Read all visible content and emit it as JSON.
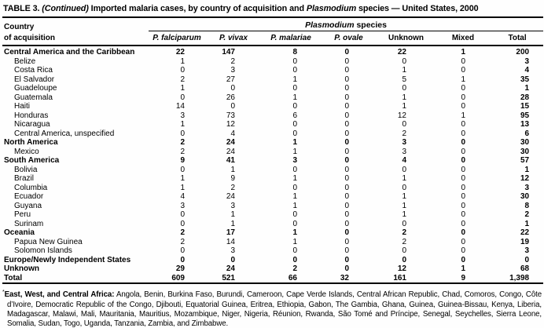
{
  "colors": {
    "background": "#fefefe",
    "text": "#000000",
    "rule": "#000000"
  },
  "title": {
    "label": "TABLE 3.",
    "continued": "(Continued)",
    "middle": "Imported malaria cases, by country of acquisition and",
    "species_word": "Plasmodium",
    "suffix": "species — United States, 2000"
  },
  "header": {
    "country_line1": "Country",
    "country_line2": "of acquisition",
    "group_italic": "Plasmodium",
    "group_rest": "species",
    "columns": [
      {
        "label": "P. falciparum",
        "italic": true
      },
      {
        "label": "P. vivax",
        "italic": true
      },
      {
        "label": "P. malariae",
        "italic": true
      },
      {
        "label": "P. ovale",
        "italic": true
      },
      {
        "label": "Unknown",
        "italic": false
      },
      {
        "label": "Mixed",
        "italic": false
      },
      {
        "label": "Total",
        "italic": false
      }
    ]
  },
  "rows": [
    {
      "label": "Central America and the Caribbean",
      "bold": true,
      "indent": false,
      "values": [
        "22",
        "147",
        "8",
        "0",
        "22",
        "1",
        "200"
      ]
    },
    {
      "label": "Belize",
      "bold": false,
      "indent": true,
      "values": [
        "1",
        "2",
        "0",
        "0",
        "0",
        "0",
        "3"
      ]
    },
    {
      "label": "Costa Rica",
      "bold": false,
      "indent": true,
      "values": [
        "0",
        "3",
        "0",
        "0",
        "1",
        "0",
        "4"
      ]
    },
    {
      "label": "El Salvador",
      "bold": false,
      "indent": true,
      "values": [
        "2",
        "27",
        "1",
        "0",
        "5",
        "1",
        "35"
      ]
    },
    {
      "label": "Guadeloupe",
      "bold": false,
      "indent": true,
      "values": [
        "1",
        "0",
        "0",
        "0",
        "0",
        "0",
        "1"
      ]
    },
    {
      "label": "Guatemala",
      "bold": false,
      "indent": true,
      "values": [
        "0",
        "26",
        "1",
        "0",
        "1",
        "0",
        "28"
      ]
    },
    {
      "label": "Haiti",
      "bold": false,
      "indent": true,
      "values": [
        "14",
        "0",
        "0",
        "0",
        "1",
        "0",
        "15"
      ]
    },
    {
      "label": "Honduras",
      "bold": false,
      "indent": true,
      "values": [
        "3",
        "73",
        "6",
        "0",
        "12",
        "1",
        "95"
      ]
    },
    {
      "label": "Nicaragua",
      "bold": false,
      "indent": true,
      "values": [
        "1",
        "12",
        "0",
        "0",
        "0",
        "0",
        "13"
      ]
    },
    {
      "label": "Central America, unspecified",
      "bold": false,
      "indent": true,
      "values": [
        "0",
        "4",
        "0",
        "0",
        "2",
        "0",
        "6"
      ]
    },
    {
      "label": "North America",
      "bold": true,
      "indent": false,
      "values": [
        "2",
        "24",
        "1",
        "0",
        "3",
        "0",
        "30"
      ]
    },
    {
      "label": "Mexico",
      "bold": false,
      "indent": true,
      "values": [
        "2",
        "24",
        "1",
        "0",
        "3",
        "0",
        "30"
      ]
    },
    {
      "label": "South America",
      "bold": true,
      "indent": false,
      "values": [
        "9",
        "41",
        "3",
        "0",
        "4",
        "0",
        "57"
      ]
    },
    {
      "label": "Bolivia",
      "bold": false,
      "indent": true,
      "values": [
        "0",
        "1",
        "0",
        "0",
        "0",
        "0",
        "1"
      ]
    },
    {
      "label": "Brazil",
      "bold": false,
      "indent": true,
      "values": [
        "1",
        "9",
        "1",
        "0",
        "1",
        "0",
        "12"
      ]
    },
    {
      "label": "Columbia",
      "bold": false,
      "indent": true,
      "values": [
        "1",
        "2",
        "0",
        "0",
        "0",
        "0",
        "3"
      ]
    },
    {
      "label": "Ecuador",
      "bold": false,
      "indent": true,
      "values": [
        "4",
        "24",
        "1",
        "0",
        "1",
        "0",
        "30"
      ]
    },
    {
      "label": "Guyana",
      "bold": false,
      "indent": true,
      "values": [
        "3",
        "3",
        "1",
        "0",
        "1",
        "0",
        "8"
      ]
    },
    {
      "label": "Peru",
      "bold": false,
      "indent": true,
      "values": [
        "0",
        "1",
        "0",
        "0",
        "1",
        "0",
        "2"
      ]
    },
    {
      "label": "Surinam",
      "bold": false,
      "indent": true,
      "values": [
        "0",
        "1",
        "0",
        "0",
        "0",
        "0",
        "1"
      ]
    },
    {
      "label": "Oceania",
      "bold": true,
      "indent": false,
      "values": [
        "2",
        "17",
        "1",
        "0",
        "2",
        "0",
        "22"
      ]
    },
    {
      "label": "Papua New Guinea",
      "bold": false,
      "indent": true,
      "values": [
        "2",
        "14",
        "1",
        "0",
        "2",
        "0",
        "19"
      ]
    },
    {
      "label": "Solomon Islands",
      "bold": false,
      "indent": true,
      "values": [
        "0",
        "3",
        "0",
        "0",
        "0",
        "0",
        "3"
      ]
    },
    {
      "label": "Europe/Newly Independent States",
      "bold": true,
      "indent": false,
      "values": [
        "0",
        "0",
        "0",
        "0",
        "0",
        "0",
        "0"
      ]
    },
    {
      "label": "Unknown",
      "bold": true,
      "indent": false,
      "values": [
        "29",
        "24",
        "2",
        "0",
        "12",
        "1",
        "68"
      ]
    },
    {
      "label": "Total",
      "bold": true,
      "indent": false,
      "values": [
        "609",
        "521",
        "66",
        "32",
        "161",
        "9",
        "1,398"
      ]
    }
  ],
  "footnote": {
    "marker": "*",
    "bold_label": "East, West, and Central Africa:",
    "text": "Angola, Benin, Burkina Faso, Burundi, Cameroon, Cape Verde Islands, Central African Republic, Chad, Comoros, Congo, Côte d’Ivoire, Democratic Republic of the Congo, Djibouti, Equatorial Guinea, Eritrea, Ethiopia, Gabon, The Gambia, Ghana, Guinea, Guinea-Bissau, Kenya, Liberia, Madagascar, Malawi, Mali, Mauritania, Mauritius, Mozambique, Niger, Nigeria, Réunion, Rwanda, São Tomé and Príncipe, Senegal, Seychelles, Sierra Leone, Somalia, Sudan, Togo, Uganda, Tanzania, Zambia, and Zimbabwe."
  }
}
